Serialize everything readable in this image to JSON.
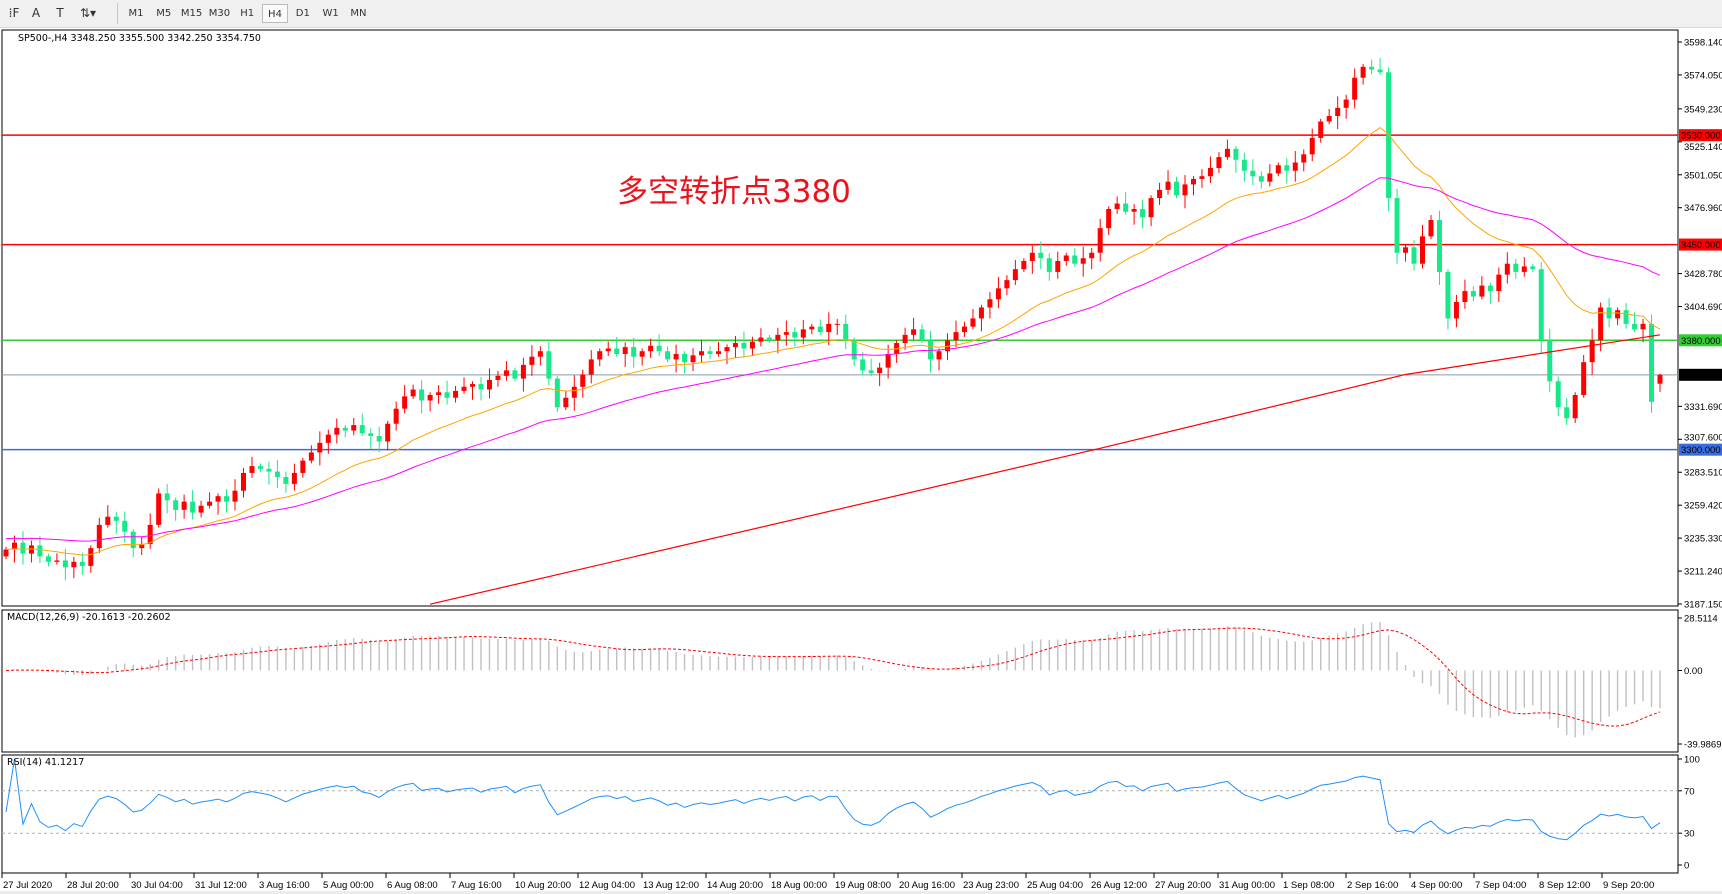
{
  "toolbar": {
    "tools": [
      {
        "name": "period-separator-icon",
        "glyph": "⁞F"
      },
      {
        "name": "text-tool-icon",
        "glyph": "A"
      },
      {
        "name": "text-label-tool-icon",
        "glyph": "T"
      },
      {
        "name": "arrows-tool-icon",
        "glyph": "⇅▾"
      }
    ],
    "timeframes": [
      "M1",
      "M5",
      "M15",
      "M30",
      "H1",
      "H4",
      "D1",
      "W1",
      "MN"
    ],
    "active_timeframe": "H4"
  },
  "chart": {
    "title": "SP500-,H4  3348.250 3355.500 3342.250 3354.750",
    "annotation": "多空转折点3380",
    "colors": {
      "bull": "#ff0000",
      "bear": "#17e88a",
      "ma_fast": "#ffa500",
      "ma_mid": "#ff00ff",
      "ma_slow": "#ff0000",
      "macd_hist": "#c0c0c0",
      "macd_signal": "#ff0000",
      "rsi": "#1e90ff"
    },
    "price_axis": [
      "3598.140",
      "3574.050",
      "3549.230",
      "3525.140",
      "3501.050",
      "3476.960",
      "3428.780",
      "3404.690",
      "3331.690",
      "3307.600",
      "3283.510",
      "3259.420",
      "3235.330",
      "3211.240",
      "3187.150"
    ],
    "price_range": [
      3187.15,
      3598.14
    ],
    "hlines": [
      {
        "price": 3530,
        "label": "3530.000",
        "color": "#ff0000",
        "text": "#ffffff"
      },
      {
        "price": 3450,
        "label": "3450.000",
        "color": "#ff0000",
        "text": "#ffffff"
      },
      {
        "price": 3380,
        "label": "3380.000",
        "color": "#33cc33",
        "text": "#ffffff"
      },
      {
        "price": 3354.75,
        "label": "3354.750",
        "color": "#8a9aa8",
        "text": "#ffffff",
        "bg": "#000000"
      },
      {
        "price": 3300,
        "label": "3300.000",
        "color": "#3a6ee0",
        "text": "#ffffff"
      }
    ],
    "time_axis": [
      "27 Jul 2020",
      "28 Jul 20:00",
      "30 Jul 04:00",
      "31 Jul 12:00",
      "3 Aug 16:00",
      "5 Aug 00:00",
      "6 Aug 08:00",
      "7 Aug 16:00",
      "10 Aug 20:00",
      "12 Aug 04:00",
      "13 Aug 12:00",
      "14 Aug 20:00",
      "18 Aug 00:00",
      "19 Aug 08:00",
      "20 Aug 16:00",
      "23 Aug 23:00",
      "25 Aug 04:00",
      "26 Aug 12:00",
      "27 Aug 20:00",
      "31 Aug 00:00",
      "1 Sep 08:00",
      "2 Sep 16:00",
      "4 Sep 00:00",
      "7 Sep 04:00",
      "8 Sep 12:00",
      "9 Sep 20:00"
    ]
  },
  "macd": {
    "label": "MACD(12,26,9) -20.1613 -20.2602",
    "axis": [
      "28.5114",
      "0.00",
      "-39.9869"
    ],
    "range": [
      -39.9869,
      28.5114
    ]
  },
  "rsi": {
    "label": "RSI(14) 41.1217",
    "axis": [
      "100",
      "70",
      "30",
      "0"
    ],
    "levels": [
      70,
      30
    ]
  },
  "chart_data": {
    "type": "candlestick",
    "last": {
      "open": 3348.25,
      "high": 3355.5,
      "low": 3342.25,
      "close": 3354.75
    },
    "closes": [
      3227,
      3232,
      3224,
      3230,
      3222,
      3218,
      3219,
      3214,
      3218,
      3215,
      3228,
      3245,
      3251,
      3248,
      3240,
      3228,
      3231,
      3245,
      3268,
      3263,
      3256,
      3262,
      3254,
      3259,
      3262,
      3266,
      3262,
      3270,
      3283,
      3288,
      3286,
      3284,
      3280,
      3275,
      3283,
      3292,
      3298,
      3305,
      3311,
      3316,
      3314,
      3318,
      3312,
      3310,
      3306,
      3319,
      3330,
      3339,
      3344,
      3336,
      3340,
      3342,
      3338,
      3343,
      3346,
      3348,
      3344,
      3351,
      3354,
      3358,
      3352,
      3362,
      3368,
      3372,
      3352,
      3331,
      3338,
      3346,
      3355,
      3366,
      3372,
      3374,
      3370,
      3375,
      3368,
      3372,
      3376,
      3372,
      3366,
      3370,
      3364,
      3369,
      3372,
      3370,
      3372,
      3375,
      3378,
      3374,
      3379,
      3382,
      3380,
      3384,
      3386,
      3382,
      3388,
      3390,
      3386,
      3392,
      3392,
      3380,
      3366,
      3358,
      3356,
      3360,
      3370,
      3378,
      3384,
      3388,
      3380,
      3366,
      3372,
      3380,
      3386,
      3390,
      3396,
      3404,
      3410,
      3418,
      3424,
      3432,
      3438,
      3444,
      3440,
      3430,
      3438,
      3442,
      3436,
      3440,
      3444,
      3462,
      3476,
      3480,
      3474,
      3476,
      3470,
      3484,
      3490,
      3496,
      3486,
      3494,
      3498,
      3500,
      3506,
      3514,
      3520,
      3512,
      3504,
      3500,
      3496,
      3502,
      3508,
      3504,
      3510,
      3516,
      3528,
      3540,
      3544,
      3550,
      3556,
      3572,
      3580,
      3578,
      3576,
      3484,
      3444,
      3448,
      3436,
      3456,
      3468,
      3430,
      3396,
      3408,
      3416,
      3412,
      3420,
      3416,
      3428,
      3436,
      3430,
      3434,
      3432,
      3380,
      3350,
      3331,
      3323,
      3340,
      3364,
      3380,
      3404,
      3396,
      3402,
      3392,
      3388,
      3392,
      3335,
      3354.75
    ],
    "slow_ma": [
      {
        "bar": 50,
        "value": 3187
      },
      {
        "bar": 129,
        "value": 3301
      },
      {
        "bar": 165,
        "value": 3355
      },
      {
        "bar": 195,
        "value": 3384
      }
    ]
  }
}
